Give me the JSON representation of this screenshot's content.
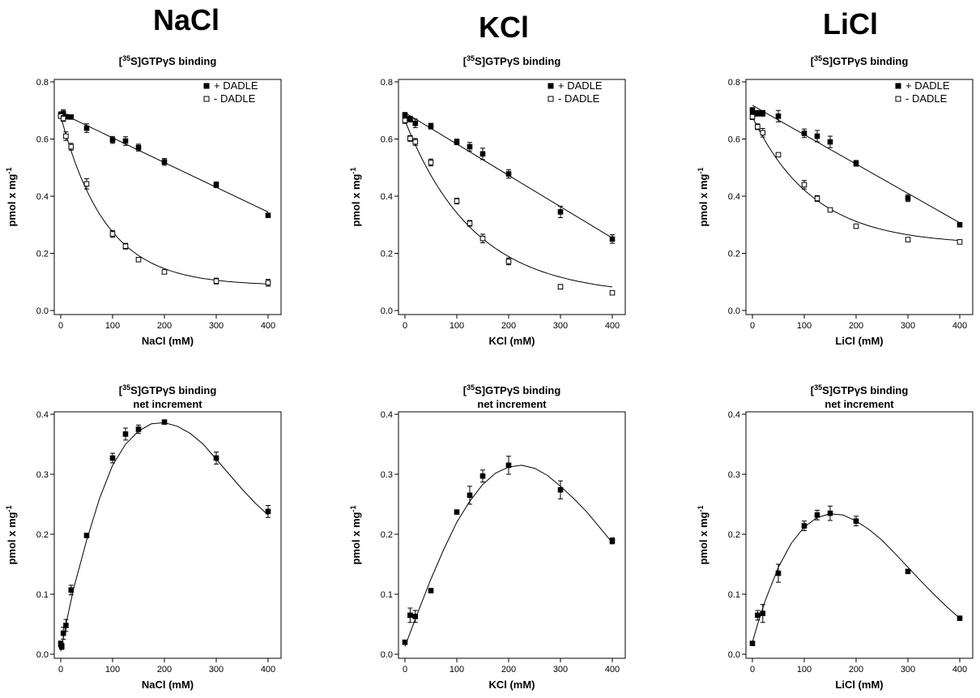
{
  "columns": [
    {
      "salt": "NaCl"
    },
    {
      "salt": "KCl"
    },
    {
      "salt": "LiCl"
    }
  ],
  "colors": {
    "filled": "#000000",
    "open": "#ffffff",
    "axis": "#000000"
  },
  "chart_data": [
    {
      "type": "scatter",
      "salt": "NaCl",
      "title_main": "S]GTP",
      "title_sup": "35",
      "title_gamma": "γ",
      "title_suffix": "S binding",
      "subtitle": "",
      "xlabel": "NaCl (mM)",
      "ylabel_main": "pmol x mg",
      "ylabel_sup": "-1",
      "xlim": [
        0,
        400
      ],
      "ylim": [
        0,
        0.8
      ],
      "xticks": [
        "0",
        "100",
        "200",
        "300",
        "400"
      ],
      "yticks": [
        "0.0",
        "0.2",
        "0.4",
        "0.6",
        "0.8"
      ],
      "legend": "top-right",
      "series": [
        {
          "name": "+ DADLE",
          "marker": "filled",
          "x": [
            0,
            5,
            10,
            20,
            50,
            100,
            125,
            150,
            200,
            300,
            400
          ],
          "y": [
            0.685,
            0.69,
            0.678,
            0.677,
            0.638,
            0.597,
            0.593,
            0.57,
            0.52,
            0.44,
            0.333
          ],
          "err": [
            0.01,
            0.012,
            0.008,
            0.006,
            0.015,
            0.012,
            0.015,
            0.012,
            0.012,
            0.01,
            0.005
          ],
          "fit": "linear"
        },
        {
          "name": "- DADLE",
          "marker": "open",
          "x": [
            0,
            5,
            10,
            20,
            50,
            100,
            125,
            150,
            200,
            300,
            400
          ],
          "y": [
            0.68,
            0.672,
            0.61,
            0.573,
            0.443,
            0.268,
            0.225,
            0.178,
            0.135,
            0.103,
            0.097
          ],
          "err": [
            0.008,
            0.01,
            0.015,
            0.012,
            0.018,
            0.012,
            0.01,
            0.005,
            0.005,
            0.01,
            0.012
          ],
          "fit": "exp"
        }
      ]
    },
    {
      "type": "scatter",
      "salt": "KCl",
      "title_main": "S]GTP",
      "title_sup": "35",
      "title_gamma": "γ",
      "title_suffix": "S binding",
      "subtitle": "",
      "xlabel": "KCl (mM)",
      "ylabel_main": "pmol x mg",
      "ylabel_sup": "-1",
      "xlim": [
        0,
        400
      ],
      "ylim": [
        0,
        0.8
      ],
      "xticks": [
        "0",
        "100",
        "200",
        "300",
        "400"
      ],
      "yticks": [
        "0.0",
        "0.2",
        "0.4",
        "0.6",
        "0.8"
      ],
      "legend": "top-right",
      "series": [
        {
          "name": "+ DADLE",
          "marker": "filled",
          "x": [
            0,
            10,
            20,
            50,
            100,
            125,
            150,
            200,
            300,
            400
          ],
          "y": [
            0.683,
            0.67,
            0.655,
            0.645,
            0.59,
            0.573,
            0.548,
            0.478,
            0.345,
            0.25
          ],
          "err": [
            0.01,
            0.01,
            0.015,
            0.01,
            0.01,
            0.015,
            0.02,
            0.015,
            0.02,
            0.015
          ],
          "fit": "linear"
        },
        {
          "name": "- DADLE",
          "marker": "open",
          "x": [
            0,
            10,
            20,
            50,
            100,
            125,
            150,
            200,
            300,
            400
          ],
          "y": [
            0.665,
            0.602,
            0.59,
            0.518,
            0.383,
            0.305,
            0.252,
            0.172,
            0.083,
            0.062
          ],
          "err": [
            0.01,
            0.01,
            0.012,
            0.012,
            0.01,
            0.01,
            0.015,
            0.012,
            0.008,
            0.005
          ],
          "fit": "exp"
        }
      ]
    },
    {
      "type": "scatter",
      "salt": "LiCl",
      "title_main": "S]GTP",
      "title_sup": "35",
      "title_gamma": "γ",
      "title_suffix": "S binding",
      "subtitle": "",
      "xlabel": "LiCl (mM)",
      "ylabel_main": "pmol x mg",
      "ylabel_sup": "-1",
      "xlim": [
        0,
        400
      ],
      "ylim": [
        0,
        0.8
      ],
      "xticks": [
        "0",
        "100",
        "200",
        "300",
        "400"
      ],
      "yticks": [
        "0.0",
        "0.2",
        "0.4",
        "0.6",
        "0.8"
      ],
      "legend": "top-right",
      "series": [
        {
          "name": "+ DADLE",
          "marker": "filled",
          "x": [
            0,
            10,
            20,
            50,
            100,
            125,
            150,
            200,
            300,
            400
          ],
          "y": [
            0.7,
            0.69,
            0.69,
            0.68,
            0.62,
            0.61,
            0.59,
            0.515,
            0.393,
            0.3
          ],
          "err": [
            0.01,
            0.01,
            0.01,
            0.02,
            0.015,
            0.02,
            0.02,
            0.01,
            0.012,
            0.005
          ],
          "fit": "linear"
        },
        {
          "name": "- DADLE",
          "marker": "open",
          "x": [
            0,
            10,
            20,
            50,
            100,
            125,
            150,
            200,
            300,
            400
          ],
          "y": [
            0.678,
            0.643,
            0.622,
            0.545,
            0.44,
            0.392,
            0.352,
            0.295,
            0.248,
            0.24
          ],
          "err": [
            0.01,
            0.01,
            0.015,
            0.005,
            0.015,
            0.01,
            0.005,
            0.005,
            0.005,
            0.005
          ],
          "fit": "exp"
        }
      ]
    },
    {
      "type": "scatter",
      "salt": "NaCl",
      "title_main": "S]GTP",
      "title_sup": "35",
      "title_gamma": "γ",
      "title_suffix": "S binding",
      "subtitle": "net increment",
      "xlabel": "NaCl (mM)",
      "ylabel_main": "pmol x mg",
      "ylabel_sup": "-1",
      "xlim": [
        0,
        400
      ],
      "ylim": [
        0,
        0.4
      ],
      "xticks": [
        "0",
        "100",
        "200",
        "300",
        "400"
      ],
      "yticks": [
        "0.0",
        "0.1",
        "0.2",
        "0.3",
        "0.4"
      ],
      "legend": "none",
      "series": [
        {
          "name": "",
          "marker": "filled",
          "x": [
            0,
            2,
            5,
            10,
            20,
            50,
            100,
            125,
            150,
            200,
            300,
            400
          ],
          "y": [
            0.017,
            0.013,
            0.035,
            0.048,
            0.107,
            0.198,
            0.327,
            0.367,
            0.375,
            0.387,
            0.327,
            0.238
          ],
          "err": [
            0.005,
            0.005,
            0.01,
            0.01,
            0.008,
            0.003,
            0.008,
            0.01,
            0.007,
            0.003,
            0.01,
            0.01
          ],
          "fit": "curve",
          "fit_points": [
            [
              0,
              0.005
            ],
            [
              10,
              0.05
            ],
            [
              25,
              0.11
            ],
            [
              50,
              0.19
            ],
            [
              75,
              0.26
            ],
            [
              100,
              0.315
            ],
            [
              125,
              0.35
            ],
            [
              150,
              0.372
            ],
            [
              175,
              0.384
            ],
            [
              200,
              0.386
            ],
            [
              225,
              0.38
            ],
            [
              250,
              0.368
            ],
            [
              275,
              0.35
            ],
            [
              300,
              0.325
            ],
            [
              325,
              0.3
            ],
            [
              350,
              0.275
            ],
            [
              375,
              0.252
            ],
            [
              400,
              0.232
            ]
          ]
        }
      ]
    },
    {
      "type": "scatter",
      "salt": "KCl",
      "title_main": "S]GTP",
      "title_sup": "35",
      "title_gamma": "γ",
      "title_suffix": "S binding",
      "subtitle": "net increment",
      "xlabel": "KCl (mM)",
      "ylabel_main": "pmol x mg",
      "ylabel_sup": "-1",
      "xlim": [
        0,
        400
      ],
      "ylim": [
        0,
        0.4
      ],
      "xticks": [
        "0",
        "100",
        "200",
        "300",
        "400"
      ],
      "yticks": [
        "0.0",
        "0.1",
        "0.2",
        "0.3",
        "0.4"
      ],
      "legend": "none",
      "series": [
        {
          "name": "",
          "marker": "filled",
          "x": [
            0,
            10,
            20,
            50,
            100,
            125,
            150,
            200,
            300,
            400
          ],
          "y": [
            0.02,
            0.065,
            0.063,
            0.106,
            0.237,
            0.265,
            0.297,
            0.315,
            0.274,
            0.189
          ],
          "err": [
            0.003,
            0.012,
            0.01,
            0.003,
            0.003,
            0.015,
            0.01,
            0.015,
            0.015,
            0.005
          ],
          "fit": "curve",
          "fit_points": [
            [
              0,
              0.013
            ],
            [
              25,
              0.07
            ],
            [
              50,
              0.125
            ],
            [
              75,
              0.175
            ],
            [
              100,
              0.22
            ],
            [
              125,
              0.255
            ],
            [
              150,
              0.283
            ],
            [
              175,
              0.302
            ],
            [
              200,
              0.312
            ],
            [
              225,
              0.315
            ],
            [
              250,
              0.31
            ],
            [
              275,
              0.298
            ],
            [
              300,
              0.28
            ],
            [
              325,
              0.26
            ],
            [
              350,
              0.238
            ],
            [
              375,
              0.212
            ],
            [
              400,
              0.186
            ]
          ]
        }
      ]
    },
    {
      "type": "scatter",
      "salt": "LiCl",
      "title_main": "S]GTP",
      "title_sup": "35",
      "title_gamma": "γ",
      "title_suffix": "S binding",
      "subtitle": "net increment",
      "xlabel": "LiCl (mM)",
      "ylabel_main": "pmol x mg",
      "ylabel_sup": "-1",
      "xlim": [
        0,
        400
      ],
      "ylim": [
        0,
        0.4
      ],
      "xticks": [
        "0",
        "100",
        "200",
        "300",
        "400"
      ],
      "yticks": [
        "0.0",
        "0.1",
        "0.2",
        "0.3",
        "0.4"
      ],
      "legend": "none",
      "series": [
        {
          "name": "",
          "marker": "filled",
          "x": [
            0,
            10,
            20,
            50,
            100,
            125,
            150,
            200,
            300,
            400
          ],
          "y": [
            0.018,
            0.065,
            0.068,
            0.135,
            0.214,
            0.232,
            0.235,
            0.222,
            0.138,
            0.06
          ],
          "err": [
            0.003,
            0.008,
            0.015,
            0.015,
            0.008,
            0.008,
            0.012,
            0.008,
            0.003,
            0.003
          ],
          "fit": "curve",
          "fit_points": [
            [
              0,
              0.02
            ],
            [
              10,
              0.05
            ],
            [
              25,
              0.09
            ],
            [
              50,
              0.145
            ],
            [
              75,
              0.185
            ],
            [
              100,
              0.212
            ],
            [
              125,
              0.228
            ],
            [
              150,
              0.234
            ],
            [
              175,
              0.232
            ],
            [
              200,
              0.222
            ],
            [
              225,
              0.208
            ],
            [
              250,
              0.19
            ],
            [
              275,
              0.168
            ],
            [
              300,
              0.145
            ],
            [
              325,
              0.122
            ],
            [
              350,
              0.1
            ],
            [
              375,
              0.079
            ],
            [
              400,
              0.06
            ]
          ]
        }
      ]
    }
  ]
}
